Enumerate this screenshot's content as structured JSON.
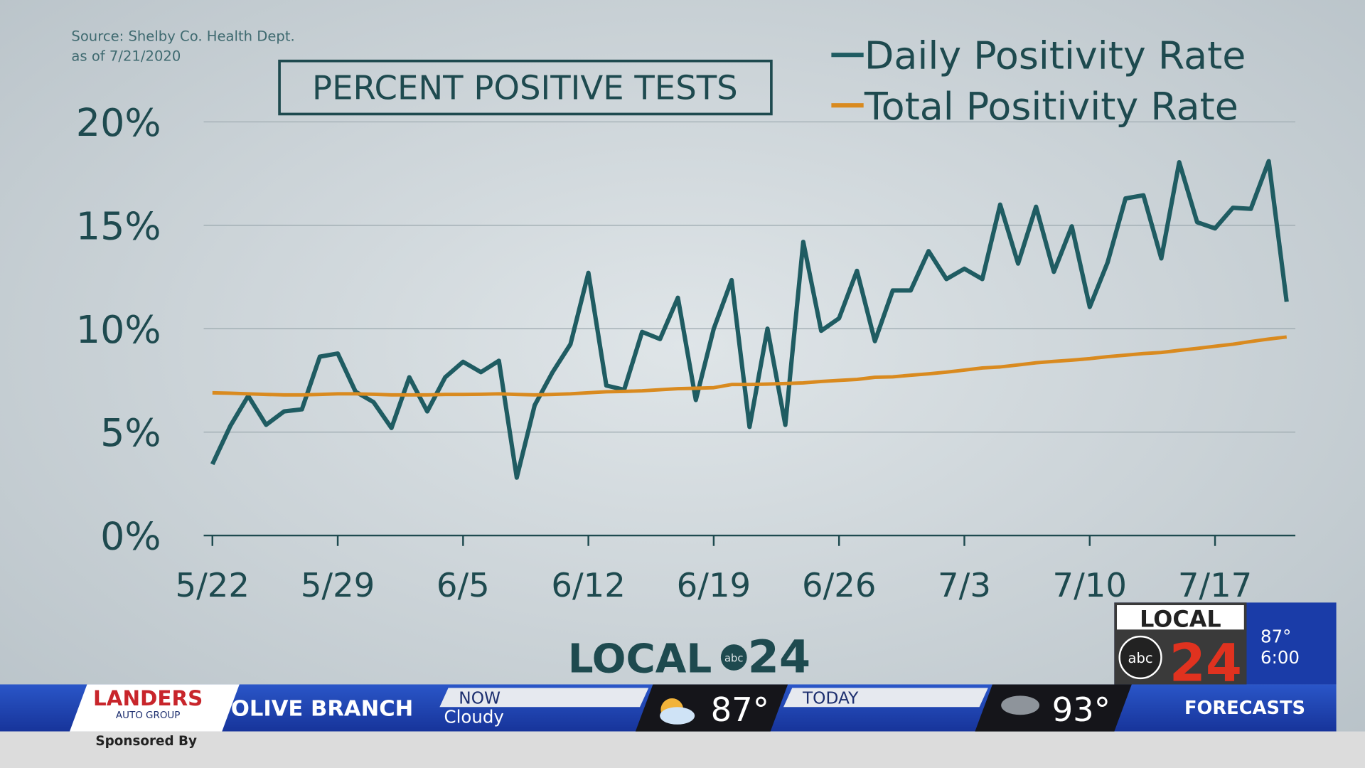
{
  "chart_data": {
    "type": "line",
    "title": "PERCENT POSITIVE TESTS",
    "source": "Source: Shelby Co. Health Dept.",
    "as_of": "as of 7/21/2020",
    "categories": [
      "5/22",
      null,
      null,
      null,
      null,
      null,
      null,
      "5/29",
      null,
      null,
      null,
      null,
      null,
      null,
      "6/5",
      null,
      null,
      null,
      null,
      null,
      null,
      "6/12",
      null,
      null,
      null,
      null,
      null,
      null,
      "6/19",
      null,
      null,
      null,
      null,
      null,
      null,
      "6/26",
      null,
      null,
      null,
      null,
      null,
      null,
      "7/3",
      null,
      null,
      null,
      null,
      null,
      null,
      "7/10",
      null,
      null,
      null,
      null,
      null,
      null,
      "7/17",
      null,
      null,
      null,
      null
    ],
    "series": [
      {
        "name": "Daily Positivity Rate",
        "color": "#1f5c62",
        "values": [
          3.45,
          5.3,
          6.75,
          5.35,
          6.0,
          6.1,
          8.65,
          8.8,
          6.95,
          6.45,
          5.2,
          7.65,
          6.0,
          7.65,
          8.4,
          7.9,
          8.45,
          2.8,
          6.3,
          7.9,
          9.25,
          12.7,
          7.25,
          7.05,
          9.85,
          9.5,
          11.5,
          6.55,
          10.0,
          12.35,
          5.25,
          10.0,
          5.35,
          14.2,
          9.9,
          10.5,
          12.8,
          9.4,
          11.85,
          11.85,
          13.75,
          12.4,
          12.9,
          12.4,
          16.0,
          13.15,
          15.9,
          12.75,
          14.95,
          11.05,
          13.2,
          16.3,
          16.45,
          13.4,
          18.05,
          15.15,
          14.85,
          15.85,
          15.8,
          18.1,
          11.3
        ]
      },
      {
        "name": "Total Positivity Rate",
        "color": "#d98a1f",
        "values": [
          6.9,
          6.88,
          6.85,
          6.82,
          6.8,
          6.8,
          6.82,
          6.85,
          6.85,
          6.83,
          6.8,
          6.8,
          6.8,
          6.82,
          6.82,
          6.83,
          6.85,
          6.82,
          6.8,
          6.82,
          6.85,
          6.9,
          6.95,
          6.97,
          7.0,
          7.05,
          7.1,
          7.12,
          7.15,
          7.3,
          7.3,
          7.32,
          7.35,
          7.38,
          7.45,
          7.5,
          7.55,
          7.65,
          7.67,
          7.75,
          7.82,
          7.9,
          8.0,
          8.1,
          8.15,
          8.25,
          8.35,
          8.42,
          8.48,
          8.55,
          8.65,
          8.72,
          8.8,
          8.85,
          8.95,
          9.05,
          9.15,
          9.25,
          9.38,
          9.5,
          9.6
        ]
      }
    ],
    "ylim": [
      0,
      20
    ],
    "yticks": [
      {
        "value": 0,
        "label": "0%"
      },
      {
        "value": 5,
        "label": "5%"
      },
      {
        "value": 10,
        "label": "10%"
      },
      {
        "value": 15,
        "label": "15%"
      },
      {
        "value": 20,
        "label": "20%"
      }
    ],
    "grid": true,
    "legend": "top-right"
  },
  "overlay": {
    "logo": {
      "word": "LOCAL",
      "number": "24",
      "network": "abc"
    },
    "ticker": {
      "sponsor": "LANDERS",
      "sponsor_sub": "AUTO GROUP",
      "sponsored_by": "Sponsored By",
      "location": "OLIVE BRANCH",
      "now_label": "NOW",
      "now_condition": "Cloudy",
      "now_temp": "87°",
      "today_label": "TODAY",
      "today_temp": "93°",
      "forecasts": "FORECASTS"
    },
    "bug": {
      "word": "LOCAL",
      "number": "24",
      "network": "abc",
      "temp": "87°",
      "time": "6:00"
    }
  }
}
